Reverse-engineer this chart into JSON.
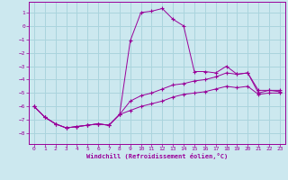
{
  "background_color": "#cce8ef",
  "grid_color": "#aad4dd",
  "line_color": "#990099",
  "xlabel": "Windchill (Refroidissement éolien,°C)",
  "xlim": [
    -0.5,
    23.5
  ],
  "ylim": [
    -8.8,
    1.8
  ],
  "yticks": [
    1,
    0,
    -1,
    -2,
    -3,
    -4,
    -5,
    -6,
    -7,
    -8
  ],
  "xticks": [
    0,
    1,
    2,
    3,
    4,
    5,
    6,
    7,
    8,
    9,
    10,
    11,
    12,
    13,
    14,
    15,
    16,
    17,
    18,
    19,
    20,
    21,
    22,
    23
  ],
  "line1_x": [
    0,
    1,
    2,
    3,
    4,
    5,
    6,
    7,
    8,
    9,
    10,
    11,
    12,
    13,
    14,
    15,
    16,
    17,
    18,
    19,
    20,
    21,
    22,
    23
  ],
  "line1_y": [
    -6.0,
    -6.8,
    -7.3,
    -7.6,
    -7.5,
    -7.4,
    -7.3,
    -7.4,
    -6.6,
    -1.1,
    1.0,
    1.1,
    1.3,
    0.5,
    0.0,
    -3.4,
    -3.4,
    -3.5,
    -3.0,
    -3.6,
    -3.5,
    -5.0,
    -4.8,
    -4.8
  ],
  "line2_x": [
    0,
    1,
    2,
    3,
    4,
    5,
    6,
    7,
    8,
    9,
    10,
    11,
    12,
    13,
    14,
    15,
    16,
    17,
    18,
    19,
    20,
    21,
    22,
    23
  ],
  "line2_y": [
    -6.0,
    -6.8,
    -7.3,
    -7.6,
    -7.5,
    -7.4,
    -7.3,
    -7.4,
    -6.6,
    -5.6,
    -5.2,
    -5.0,
    -4.7,
    -4.4,
    -4.3,
    -4.1,
    -4.0,
    -3.8,
    -3.5,
    -3.6,
    -3.5,
    -4.8,
    -4.8,
    -4.9
  ],
  "line3_x": [
    0,
    1,
    2,
    3,
    4,
    5,
    6,
    7,
    8,
    9,
    10,
    11,
    12,
    13,
    14,
    15,
    16,
    17,
    18,
    19,
    20,
    21,
    22,
    23
  ],
  "line3_y": [
    -6.0,
    -6.8,
    -7.3,
    -7.6,
    -7.5,
    -7.4,
    -7.3,
    -7.4,
    -6.6,
    -6.3,
    -6.0,
    -5.8,
    -5.6,
    -5.3,
    -5.1,
    -5.0,
    -4.9,
    -4.7,
    -4.5,
    -4.6,
    -4.5,
    -5.1,
    -5.0,
    -5.0
  ]
}
